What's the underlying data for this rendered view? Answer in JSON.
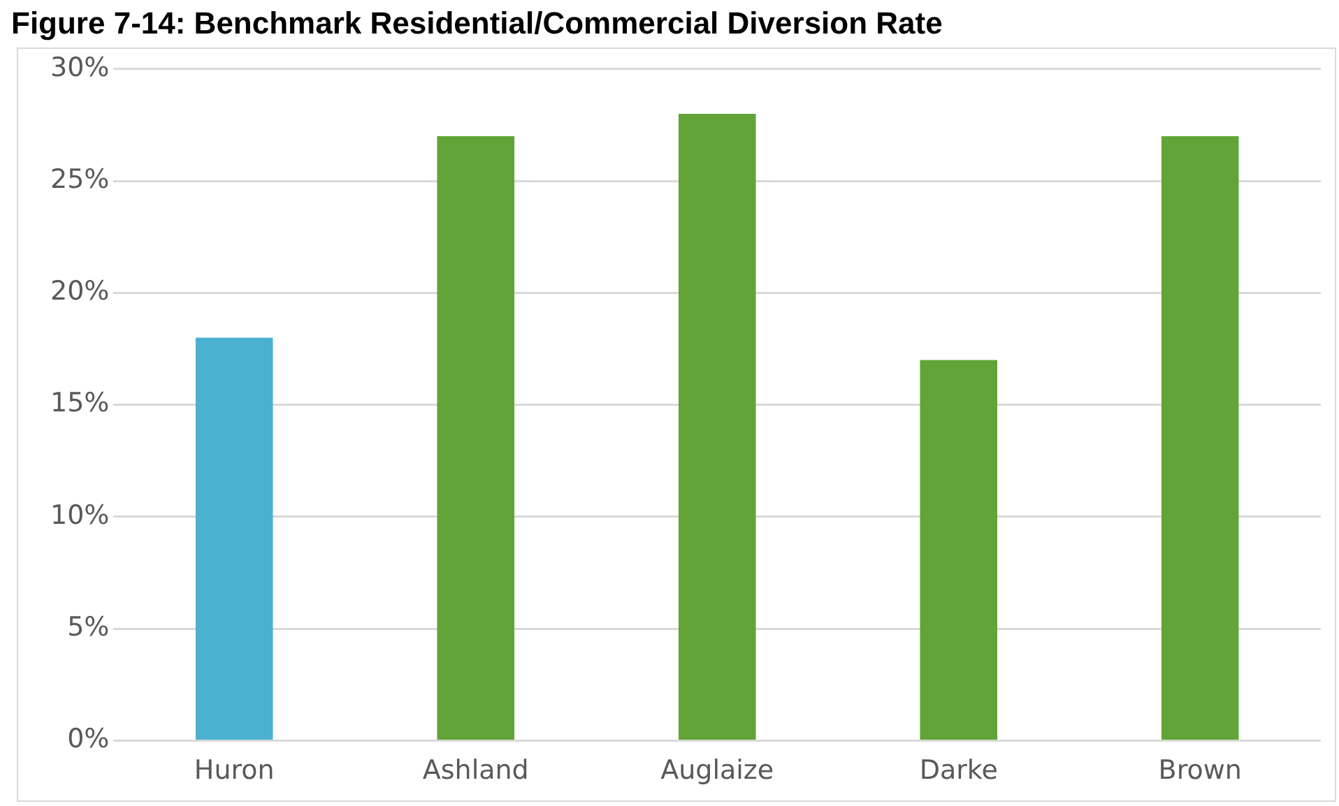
{
  "chart_data": {
    "type": "bar",
    "title": "Figure 7-14: Benchmark Residential/Commercial Diversion Rate",
    "categories": [
      "Huron",
      "Ashland",
      "Auglaize",
      "Darke",
      "Brown"
    ],
    "values": [
      18,
      27,
      28,
      17,
      27
    ],
    "colors": [
      "#4bb1d0",
      "#62a437",
      "#62a437",
      "#62a437",
      "#62a437"
    ],
    "ylim": [
      0,
      30
    ],
    "yticks": [
      {
        "value": 0,
        "label": "0%"
      },
      {
        "value": 5,
        "label": "5%"
      },
      {
        "value": 10,
        "label": "10%"
      },
      {
        "value": 15,
        "label": "15%"
      },
      {
        "value": 20,
        "label": "20%"
      },
      {
        "value": 25,
        "label": "25%"
      },
      {
        "value": 30,
        "label": "30%"
      }
    ],
    "grid": "y",
    "legend": false
  }
}
